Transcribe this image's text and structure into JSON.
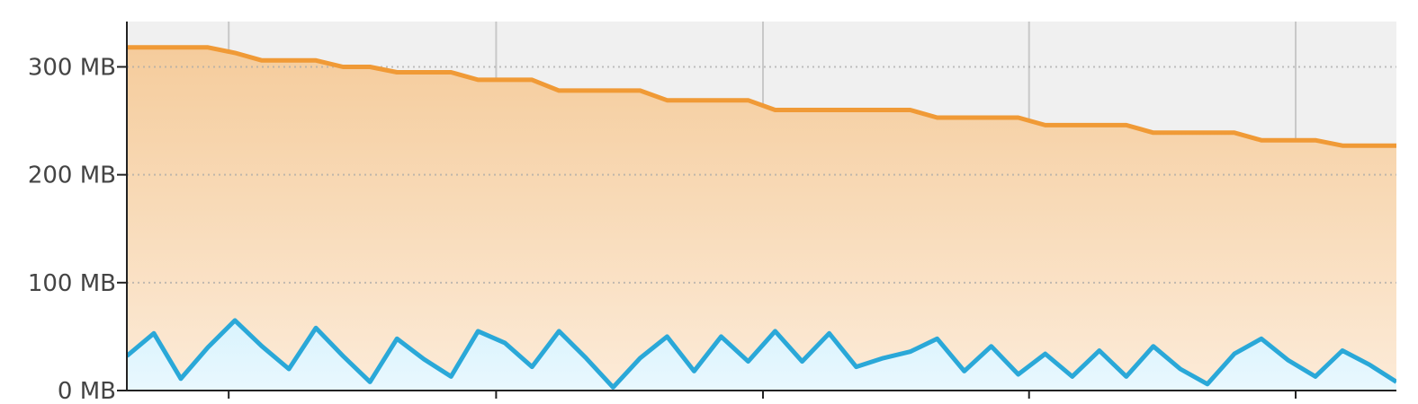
{
  "chart_data": {
    "type": "area",
    "title": "",
    "xlabel": "",
    "ylabel": "",
    "ylim": [
      0,
      342
    ],
    "xlim": [
      0,
      47
    ],
    "grid": {
      "horizontal": "dotted",
      "vertical": "solid"
    },
    "y_ticks": [
      {
        "value": 0,
        "label": "0 MB"
      },
      {
        "value": 100,
        "label": "100 MB"
      },
      {
        "value": 200,
        "label": "200 MB"
      },
      {
        "value": 300,
        "label": "300 MB"
      }
    ],
    "x_ticks": [
      3.77,
      13.67,
      23.55,
      33.4,
      43.27
    ],
    "series": [
      {
        "color": "#F09A36",
        "fill_top": "#F5CC9C",
        "fill_bottom": "#FCEBD8",
        "x": [
          0,
          1,
          2,
          3,
          4,
          5,
          6,
          7,
          8,
          9,
          10,
          11,
          12,
          13,
          14,
          15,
          16,
          17,
          18,
          19,
          20,
          21,
          22,
          23,
          24,
          25,
          26,
          27,
          28,
          29,
          30,
          31,
          32,
          33,
          34,
          35,
          36,
          37,
          38,
          39,
          40,
          41,
          42,
          43,
          44,
          45,
          46,
          47
        ],
        "values": [
          318,
          318,
          318,
          318,
          313,
          306,
          306,
          306,
          300,
          300,
          295,
          295,
          295,
          288,
          288,
          288,
          278,
          278,
          278,
          278,
          269,
          269,
          269,
          269,
          260,
          260,
          260,
          260,
          260,
          260,
          253,
          253,
          253,
          253,
          246,
          246,
          246,
          246,
          239,
          239,
          239,
          239,
          232,
          232,
          232,
          227,
          227,
          227
        ]
      },
      {
        "color": "#2AA8D8",
        "fill_top": "#D9F3FD",
        "fill_bottom": "#E9F8FE",
        "x": [
          0,
          1,
          2,
          3,
          4,
          5,
          6,
          7,
          8,
          9,
          10,
          11,
          12,
          13,
          14,
          15,
          16,
          17,
          18,
          19,
          20,
          21,
          22,
          23,
          24,
          25,
          26,
          27,
          28,
          29,
          30,
          31,
          32,
          33,
          34,
          35,
          36,
          37,
          38,
          39,
          40,
          41,
          42,
          43,
          44,
          45,
          46,
          47
        ],
        "values": [
          32,
          53,
          11,
          40,
          65,
          41,
          20,
          58,
          32,
          8,
          48,
          29,
          13,
          55,
          44,
          22,
          55,
          30,
          3,
          30,
          50,
          18,
          50,
          27,
          55,
          27,
          53,
          22,
          30,
          36,
          48,
          18,
          41,
          15,
          34,
          13,
          37,
          13,
          41,
          20,
          6,
          34,
          48,
          28,
          13,
          37,
          24,
          8
        ]
      }
    ]
  }
}
